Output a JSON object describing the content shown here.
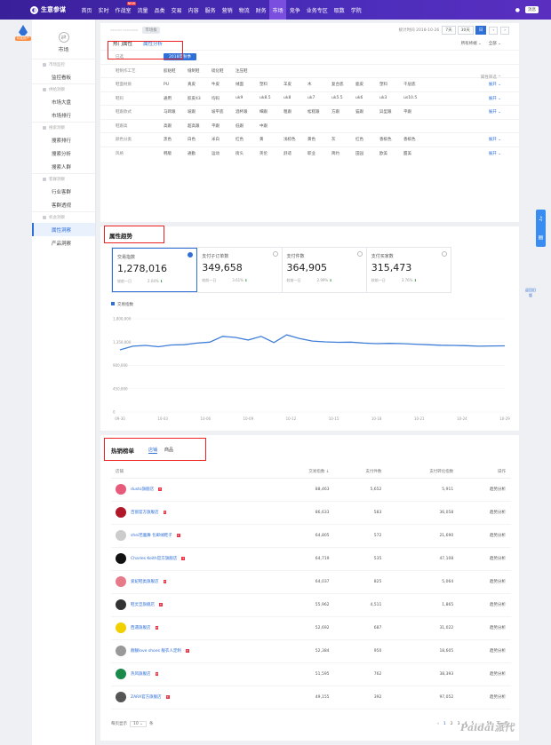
{
  "topnav": {
    "brand": "生意参谋",
    "items": [
      "首页",
      "实时",
      "作战室",
      "流量",
      "品类",
      "交易",
      "内容",
      "服务",
      "营销",
      "物流",
      "财务",
      "市场",
      "竞争",
      "业务专区",
      "取数",
      "学院"
    ],
    "active": "市场",
    "hot_badge": "NEW",
    "message": "消息"
  },
  "sidebar": {
    "avatar_tag": "标准用户",
    "market_label": "市场",
    "sections": [
      {
        "title": "市场监控",
        "items": [
          "监控看板"
        ]
      },
      {
        "title": "供给洞察",
        "items": [
          "市场大盘",
          "市场排行"
        ]
      },
      {
        "title": "搜索洞察",
        "items": [
          "搜索排行",
          "搜索分析",
          "搜索人群"
        ]
      },
      {
        "title": "客群洞察",
        "items": [
          "行业客群",
          "客群透视"
        ]
      },
      {
        "title": "机会洞察",
        "items": [
          "属性洞察",
          "产品洞察"
        ]
      }
    ],
    "active": "属性洞察"
  },
  "filter": {
    "category_pill": "市场板",
    "stats_time": "统计时间 2018-10-26",
    "periods": [
      "7天",
      "30天",
      "日"
    ],
    "period_active": "日",
    "tabs": [
      "热门属性",
      "属性分析"
    ],
    "tab_active": "属性分析",
    "device": "所有终端",
    "channel": "全部",
    "attr_more": "属性筛选",
    "rows": [
      {
        "label": "已选",
        "values": [
          "2018年秋季"
        ],
        "more": ""
      },
      {
        "label": "鞋制作工艺",
        "values": [
          "胶粘鞋",
          "缝制鞋",
          "硫化鞋",
          "注压鞋"
        ],
        "more": ""
      },
      {
        "label": "鞋面材质",
        "values": [
          "PU",
          "真皮",
          "牛皮",
          "绒面",
          "塑料",
          "羊皮",
          "木",
          "复合底",
          "鹿皮",
          "塑料",
          "千层底"
        ],
        "more": "展开"
      },
      {
        "label": "鞋码",
        "values": [
          "通用",
          "胶皮43",
          "均码",
          "uk9",
          "uk8.5",
          "uk8",
          "uk7",
          "uk5.5",
          "uk6",
          "uk3",
          "us10.5"
        ],
        "more": "展开"
      },
      {
        "label": "鞋跟款式",
        "values": [
          "马蹄跟",
          "坡跟",
          "坡平底",
          "酒杯跟",
          "细跟",
          "粗跟",
          "松糕跟",
          "方跟",
          "猫跟",
          "异型跟",
          "平跟"
        ],
        "more": "展开"
      },
      {
        "label": "鞋跟高",
        "values": [
          "高跟",
          "超高跟",
          "平跟",
          "低跟",
          "中跟"
        ],
        "more": ""
      },
      {
        "label": "颜色分类",
        "values": [
          "黑色",
          "白色",
          "米白",
          "红色",
          "黄",
          "浅棕色",
          "黄色",
          "灰",
          "红色",
          "香槟色",
          "香槟色"
        ],
        "more": "展开"
      },
      {
        "label": "风格",
        "values": [
          "韩版",
          "通勤",
          "运动",
          "街头",
          "英伦",
          "舒适",
          "职业",
          "简约",
          "田园",
          "欧美",
          "甜美"
        ],
        "more": "展开"
      }
    ]
  },
  "trend": {
    "title": "属性趋势",
    "metrics": [
      {
        "label": "交易指数",
        "value": "1,278,016",
        "compare_label": "较前一日",
        "change": "2.04%",
        "on": true
      },
      {
        "label": "支付子订单数",
        "value": "349,658",
        "compare_label": "较前一日",
        "change": "3.61%",
        "on": false
      },
      {
        "label": "支付件数",
        "value": "364,905",
        "compare_label": "较前一日",
        "change": "2.99%",
        "on": false
      },
      {
        "label": "支付买家数",
        "value": "315,473",
        "compare_label": "较前一日",
        "change": "3.76%",
        "on": false
      }
    ]
  },
  "chart_data": {
    "type": "line",
    "legend": "交易指数",
    "legend_position": "top-left",
    "x_ticks": [
      "09-30",
      "10-03",
      "10-06",
      "10-09",
      "10-12",
      "10-15",
      "10-18",
      "10-21",
      "10-24",
      "10-29"
    ],
    "y_ticks": [
      "1,800,000",
      "1,350,000",
      "900,000",
      "450,000",
      "0"
    ],
    "ylim": [
      0,
      1800000
    ],
    "series": [
      {
        "name": "交易指数",
        "values": [
          1200000,
          1270000,
          1285000,
          1260000,
          1295000,
          1300000,
          1330000,
          1350000,
          1460000,
          1440000,
          1390000,
          1460000,
          1340000,
          1490000,
          1420000,
          1370000,
          1355000,
          1345000,
          1350000,
          1330000,
          1320000,
          1325000,
          1320000,
          1310000,
          1300000,
          1290000,
          1285000,
          1280000,
          1270000,
          1275000,
          1278000
        ]
      }
    ]
  },
  "rank": {
    "title": "热销榜单",
    "tabs": [
      "店铺",
      "商品"
    ],
    "tab_active": "店铺",
    "columns": [
      "店铺",
      "交易指数",
      "支付件数",
      "支付转化指数",
      "操作"
    ],
    "rows": [
      {
        "name": "dusto旗舰店",
        "t": "88,463",
        "p": "5,652",
        "c": "5,911",
        "logo": "#e85a7a"
      },
      {
        "name": "百丽官方旗舰店",
        "t": "86,633",
        "p": "583",
        "c": "36,058",
        "logo": "#b0182a"
      },
      {
        "name": "shei芭蕾舞 包邮绒鞋子",
        "t": "64,805",
        "p": "572",
        "c": "21,690",
        "logo": "#cccccc"
      },
      {
        "name": "Charles Keith官方旗舰店",
        "t": "64,719",
        "p": "535",
        "c": "47,108",
        "logo": "#111111"
      },
      {
        "name": "爱妃鞋类旗舰店",
        "t": "64,037",
        "p": "825",
        "c": "5,064",
        "logo": "#e67a8a"
      },
      {
        "name": "鞋灵旦旗舰店",
        "t": "55,962",
        "p": "4,511",
        "c": "1,865",
        "logo": "#333333"
      },
      {
        "name": "西遇旗舰店",
        "t": "52,692",
        "p": "687",
        "c": "31,022",
        "logo": "#f0d000"
      },
      {
        "name": "靓靓love shoes 靓衣人定制",
        "t": "52,384",
        "p": "950",
        "c": "18,605",
        "logo": "#999999"
      },
      {
        "name": "热风旗舰店",
        "t": "51,595",
        "p": "762",
        "c": "38,393",
        "logo": "#1a8a4a"
      },
      {
        "name": "ZARA官方旗舰店",
        "t": "49,155",
        "p": "392",
        "c": "97,052",
        "logo": "#555555"
      }
    ],
    "action": "趋势分析",
    "pager": {
      "per_page_label": "每页显示",
      "per_page": "10",
      "unit": "条",
      "pages": [
        "1",
        "2",
        "3",
        "4",
        "5"
      ],
      "last": "50",
      "next": "下一页"
    }
  },
  "float": {
    "cap": "返回旧版"
  },
  "watermark": "Paidai派代"
}
